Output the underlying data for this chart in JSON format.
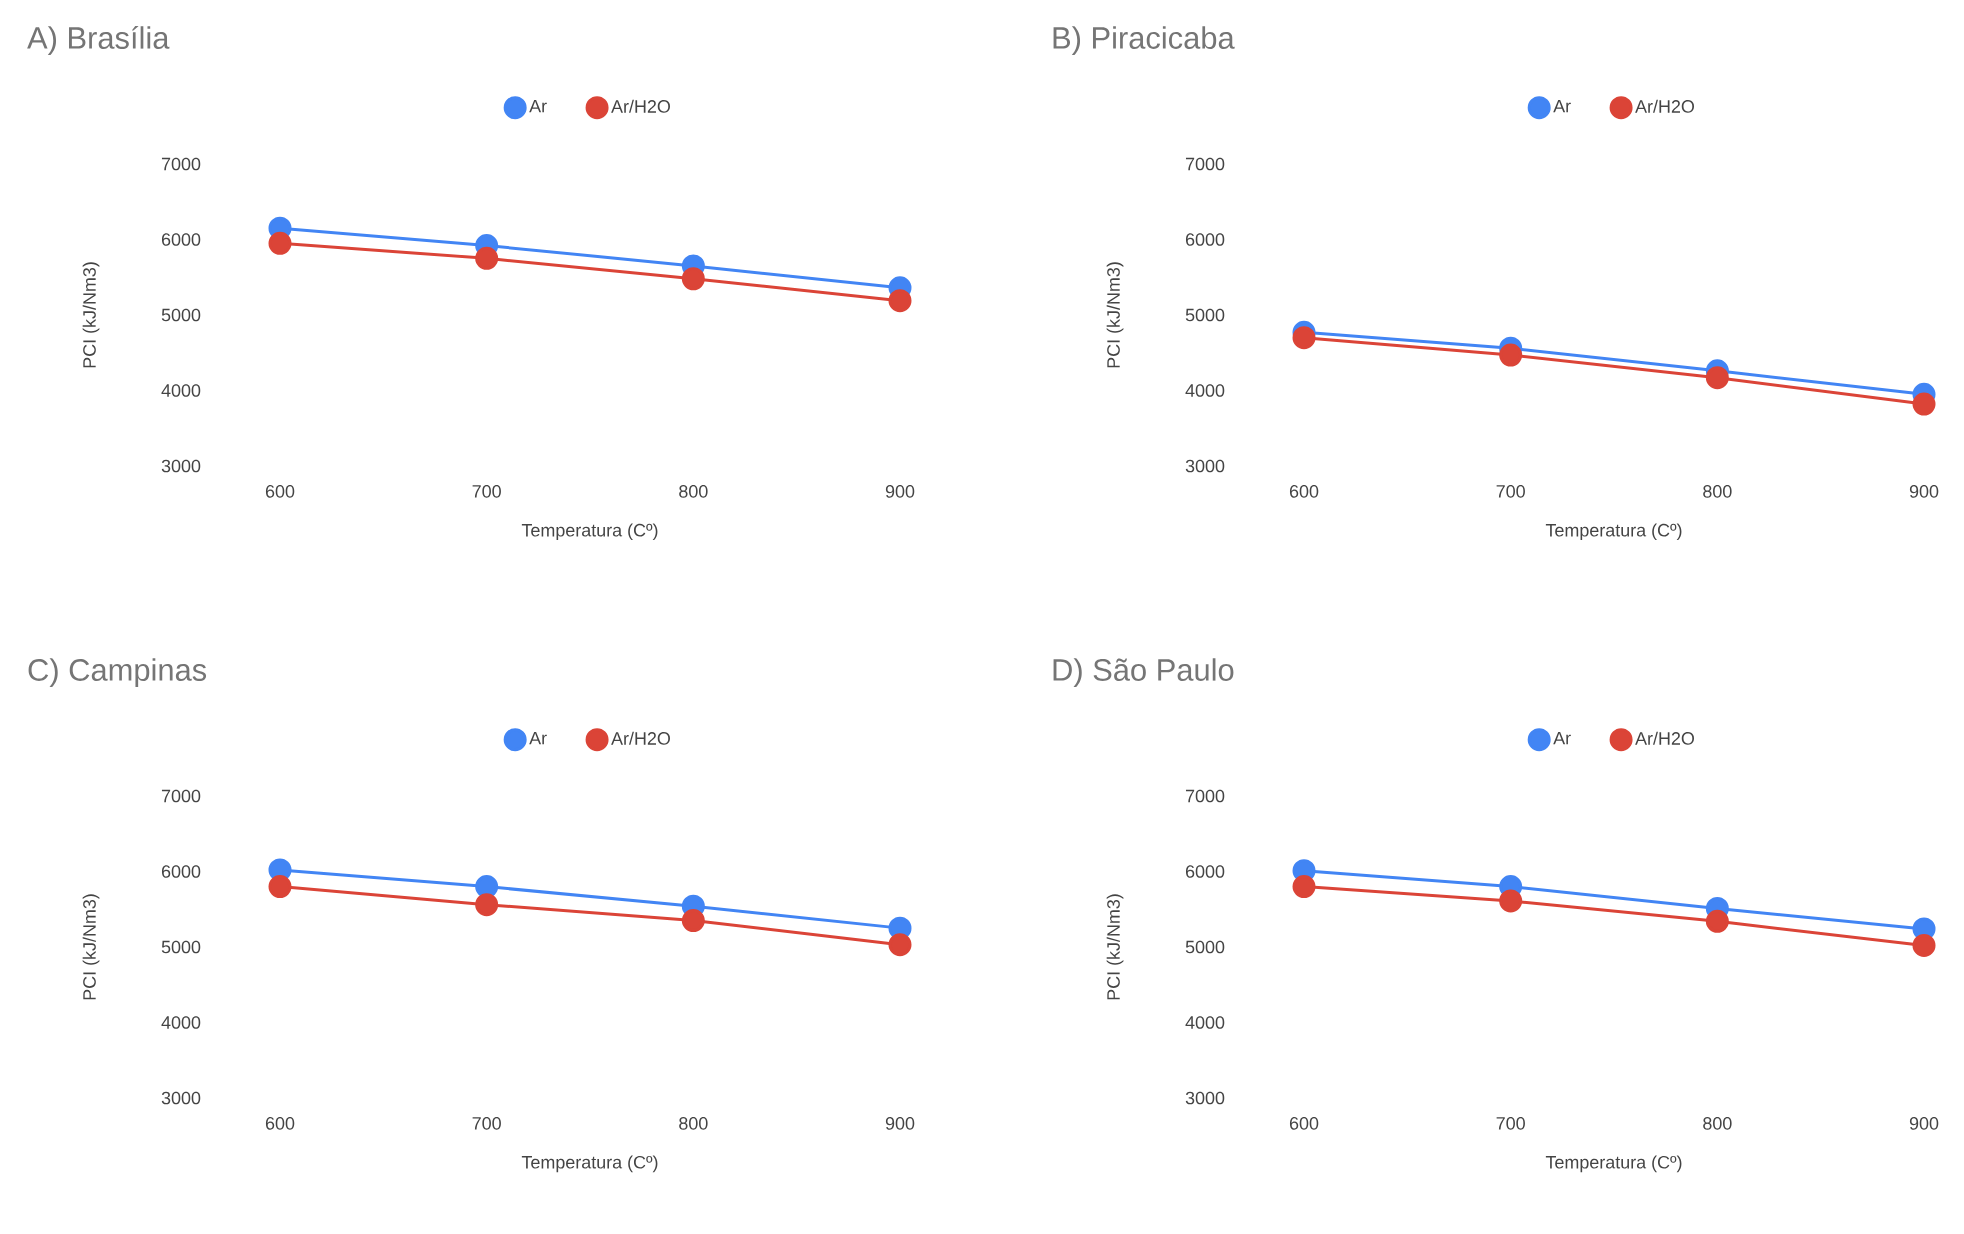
{
  "chart_data": [
    {
      "type": "line",
      "title": "A) Brasília",
      "xlabel": "Temperatura (Cº)",
      "ylabel": "PCI (kJ/Nm3)",
      "x": [
        600,
        700,
        800,
        900
      ],
      "xlim": [
        600,
        900
      ],
      "xticks": [
        600,
        700,
        800,
        900
      ],
      "ylim": [
        3000,
        7000
      ],
      "yticks": [
        3000,
        4000,
        5000,
        6000,
        7000
      ],
      "legend": "top",
      "marker": "circle",
      "series": [
        {
          "name": "Ar",
          "color": "#4285f4",
          "values": [
            6150,
            5920,
            5650,
            5360
          ]
        },
        {
          "name": "Ar/H2O",
          "color": "#db4437",
          "values": [
            5950,
            5750,
            5480,
            5190
          ]
        }
      ]
    },
    {
      "type": "line",
      "title": "B) Piracicaba",
      "xlabel": "Temperatura (Cº)",
      "ylabel": "PCI (kJ/Nm3)",
      "x": [
        600,
        700,
        800,
        900
      ],
      "xlim": [
        600,
        900
      ],
      "xticks": [
        600,
        700,
        800,
        900
      ],
      "ylim": [
        3000,
        7000
      ],
      "yticks": [
        3000,
        4000,
        5000,
        6000,
        7000
      ],
      "legend": "top",
      "marker": "circle",
      "series": [
        {
          "name": "Ar",
          "color": "#4285f4",
          "values": [
            4770,
            4560,
            4260,
            3950
          ]
        },
        {
          "name": "Ar/H2O",
          "color": "#db4437",
          "values": [
            4700,
            4470,
            4170,
            3820
          ]
        }
      ]
    },
    {
      "type": "line",
      "title": "C) Campinas",
      "xlabel": "Temperatura (Cº)",
      "ylabel": "PCI (kJ/Nm3)",
      "x": [
        600,
        700,
        800,
        900
      ],
      "xlim": [
        600,
        900
      ],
      "xticks": [
        600,
        700,
        800,
        900
      ],
      "ylim": [
        3000,
        7000
      ],
      "yticks": [
        3000,
        4000,
        5000,
        6000,
        7000
      ],
      "legend": "top",
      "marker": "circle",
      "series": [
        {
          "name": "Ar",
          "color": "#4285f4",
          "values": [
            6020,
            5800,
            5540,
            5250
          ]
        },
        {
          "name": "Ar/H2O",
          "color": "#db4437",
          "values": [
            5800,
            5560,
            5350,
            5030
          ]
        }
      ]
    },
    {
      "type": "line",
      "title": "D) São Paulo",
      "xlabel": "Temperatura (Cº)",
      "ylabel": "PCI (kJ/Nm3)",
      "x": [
        600,
        700,
        800,
        900
      ],
      "xlim": [
        600,
        900
      ],
      "xticks": [
        600,
        700,
        800,
        900
      ],
      "ylim": [
        3000,
        7000
      ],
      "yticks": [
        3000,
        4000,
        5000,
        6000,
        7000
      ],
      "legend": "top",
      "marker": "circle",
      "series": [
        {
          "name": "Ar",
          "color": "#4285f4",
          "values": [
            6010,
            5800,
            5510,
            5240
          ]
        },
        {
          "name": "Ar/H2O",
          "color": "#db4437",
          "values": [
            5800,
            5610,
            5340,
            5020
          ]
        }
      ]
    }
  ]
}
